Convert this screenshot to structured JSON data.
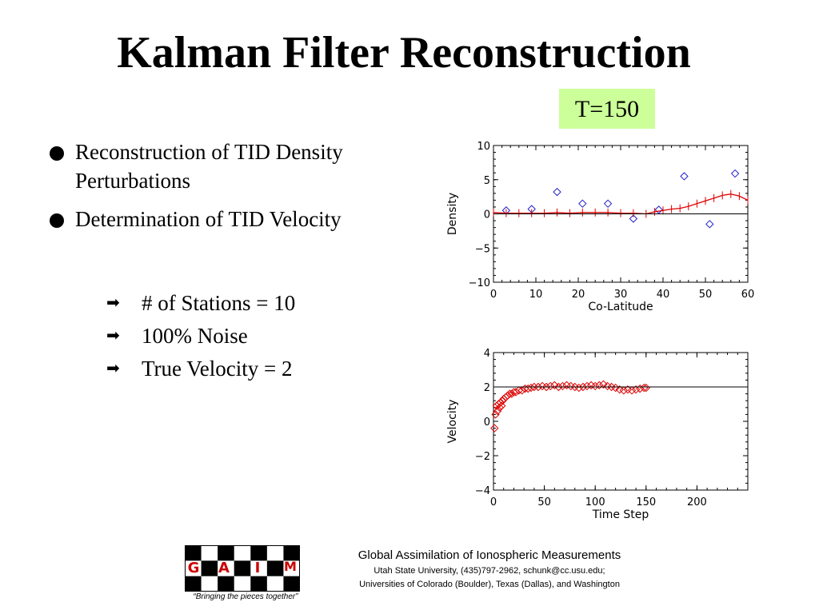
{
  "slide": {
    "title": "Kalman Filter Reconstruction",
    "badge": "T=150",
    "bullets": [
      "Reconstruction of TID Density Perturbations",
      "Determination of TID Velocity"
    ],
    "subpoints": [
      "# of Stations = 10",
      "100% Noise",
      "True Velocity = 2"
    ]
  },
  "footer": {
    "line1": "Global Assimilation of Ionospheric Measurements",
    "line2": "Utah State University, (435)797-2962, schunk@cc.usu.edu;",
    "line3": "Universities of Colorado (Boulder), Texas (Dallas), and Washington",
    "tagline": "“Bringing the pieces together”",
    "logo_letters": [
      "G",
      "A",
      "I",
      "M"
    ]
  },
  "chart_data": [
    {
      "type": "scatter",
      "xlabel": "Co-Latitude",
      "ylabel": "Density",
      "xlim": [
        0,
        60
      ],
      "ylim": [
        -10,
        10
      ],
      "xticks": [
        0,
        10,
        20,
        30,
        40,
        50,
        60
      ],
      "yticks": [
        10,
        5,
        0,
        -5,
        -10
      ],
      "series": [
        {
          "marker": "diamond",
          "color": "#2222cc",
          "points": [
            [
              3,
              0.5
            ],
            [
              9,
              0.7
            ],
            [
              15,
              3.2
            ],
            [
              21,
              1.5
            ],
            [
              27,
              1.5
            ],
            [
              33,
              -0.7
            ],
            [
              39,
              0.6
            ],
            [
              45,
              5.5
            ],
            [
              51,
              -1.5
            ],
            [
              57,
              5.9
            ]
          ]
        },
        {
          "marker": "line+cross",
          "color": "#dd0000",
          "points": [
            [
              0,
              0.2
            ],
            [
              3,
              0.1
            ],
            [
              6,
              0.1
            ],
            [
              9,
              0.1
            ],
            [
              12,
              0.1
            ],
            [
              15,
              0.2
            ],
            [
              18,
              0.1
            ],
            [
              21,
              0.2
            ],
            [
              24,
              0.2
            ],
            [
              27,
              0.2
            ],
            [
              30,
              0.1
            ],
            [
              33,
              0.1
            ],
            [
              36,
              0.0
            ],
            [
              38,
              0.3
            ],
            [
              40,
              0.5
            ],
            [
              42,
              0.7
            ],
            [
              44,
              0.8
            ],
            [
              46,
              1.1
            ],
            [
              48,
              1.5
            ],
            [
              50,
              1.9
            ],
            [
              52,
              2.3
            ],
            [
              54,
              2.7
            ],
            [
              56,
              2.9
            ],
            [
              58,
              2.6
            ],
            [
              60,
              2.0
            ]
          ]
        },
        {
          "marker": "none",
          "color": "#000000",
          "points": [
            [
              0,
              0
            ],
            [
              60,
              0
            ]
          ]
        }
      ]
    },
    {
      "type": "scatter",
      "xlabel": "Time Step",
      "ylabel": "Velocity",
      "xlim": [
        0,
        250
      ],
      "ylim": [
        -4,
        4
      ],
      "xticks": [
        0,
        50,
        100,
        150,
        200
      ],
      "yticks": [
        4,
        2,
        0,
        -2,
        -4
      ],
      "true_velocity": 2,
      "series": [
        {
          "marker": "diamond",
          "color": "#dd0000",
          "points": [
            [
              1,
              -0.4
            ],
            [
              2,
              0.4
            ],
            [
              3,
              0.9
            ],
            [
              4,
              0.6
            ],
            [
              5,
              1.0
            ],
            [
              6,
              0.8
            ],
            [
              7,
              1.1
            ],
            [
              8,
              0.9
            ],
            [
              9,
              1.2
            ],
            [
              10,
              1.3
            ],
            [
              12,
              1.4
            ],
            [
              14,
              1.5
            ],
            [
              16,
              1.6
            ],
            [
              18,
              1.6
            ],
            [
              20,
              1.7
            ],
            [
              22,
              1.7
            ],
            [
              25,
              1.8
            ],
            [
              28,
              1.8
            ],
            [
              31,
              1.9
            ],
            [
              34,
              1.9
            ],
            [
              37,
              1.95
            ],
            [
              40,
              2.0
            ],
            [
              44,
              2.0
            ],
            [
              48,
              2.05
            ],
            [
              52,
              2.0
            ],
            [
              56,
              2.05
            ],
            [
              60,
              2.1
            ],
            [
              64,
              2.0
            ],
            [
              68,
              2.05
            ],
            [
              72,
              2.1
            ],
            [
              76,
              2.05
            ],
            [
              80,
              2.0
            ],
            [
              84,
              1.95
            ],
            [
              88,
              2.0
            ],
            [
              92,
              2.05
            ],
            [
              96,
              2.1
            ],
            [
              100,
              2.05
            ],
            [
              104,
              2.1
            ],
            [
              108,
              2.15
            ],
            [
              112,
              2.05
            ],
            [
              116,
              2.0
            ],
            [
              120,
              1.95
            ],
            [
              124,
              1.85
            ],
            [
              128,
              1.8
            ],
            [
              132,
              1.85
            ],
            [
              136,
              1.8
            ],
            [
              140,
              1.85
            ],
            [
              144,
              1.9
            ],
            [
              148,
              1.95
            ],
            [
              150,
              1.95
            ]
          ]
        },
        {
          "marker": "none",
          "color": "#000000",
          "points": [
            [
              0,
              2
            ],
            [
              250,
              2
            ]
          ]
        }
      ]
    }
  ]
}
